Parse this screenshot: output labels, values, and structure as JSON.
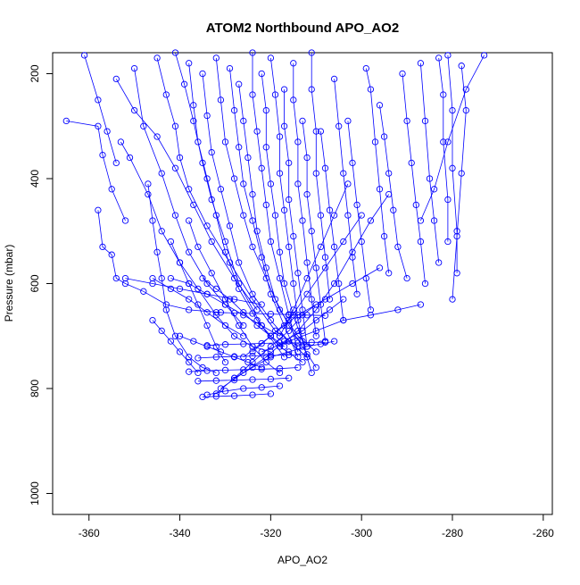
{
  "chart_data": {
    "type": "scatter",
    "title": "ATOM2 Northbound APO_AO2",
    "xlabel": "APO_AO2",
    "ylabel": "Pressure (mbar)",
    "xlim": [
      -368,
      -258
    ],
    "ylim": [
      1040,
      160
    ],
    "y_reversed": true,
    "x_ticks": [
      -360,
      -340,
      -320,
      -300,
      -280,
      -260
    ],
    "y_ticks": [
      200,
      400,
      600,
      800,
      1000
    ],
    "grid": false,
    "marker": "open-circle",
    "connect_points": true,
    "series_color": "#0000ff",
    "series": [
      {
        "x": [
          -361,
          -358,
          -356,
          -354
        ],
        "y": [
          165,
          250,
          310,
          370
        ]
      },
      {
        "x": [
          -365,
          -358,
          -357,
          -355,
          -352
        ],
        "y": [
          290,
          300,
          355,
          420,
          480
        ]
      },
      {
        "x": [
          -358,
          -357,
          -355,
          -354,
          -352,
          -348,
          -343,
          -338,
          -331
        ],
        "y": [
          460,
          530,
          545,
          590,
          600,
          615,
          640,
          650,
          655
        ]
      },
      {
        "x": [
          -354,
          -350,
          -345,
          -341,
          -337,
          -333,
          -328,
          -323
        ],
        "y": [
          210,
          270,
          320,
          380,
          450,
          520,
          590,
          650
        ]
      },
      {
        "x": [
          -350,
          -348,
          -344,
          -341,
          -338,
          -334,
          -330,
          -326
        ],
        "y": [
          190,
          300,
          390,
          470,
          540,
          600,
          640,
          680
        ]
      },
      {
        "x": [
          -353,
          -351,
          -347,
          -344,
          -340,
          -336,
          -332,
          -328,
          -324,
          -320
        ],
        "y": [
          330,
          360,
          430,
          500,
          560,
          610,
          660,
          700,
          720,
          730
        ]
      },
      {
        "x": [
          -345,
          -343,
          -341,
          -340,
          -338,
          -334,
          -329,
          -324,
          -319,
          -314
        ],
        "y": [
          170,
          240,
          300,
          360,
          420,
          490,
          560,
          630,
          690,
          720
        ]
      },
      {
        "x": [
          -347,
          -346,
          -345,
          -344,
          -343,
          -341,
          -338,
          -335,
          -332
        ],
        "y": [
          410,
          480,
          540,
          590,
          650,
          700,
          740,
          760,
          770
        ]
      },
      {
        "x": [
          -341,
          -339,
          -337,
          -335,
          -333,
          -330,
          -327,
          -322,
          -317
        ],
        "y": [
          160,
          220,
          290,
          370,
          440,
          520,
          600,
          680,
          740
        ]
      },
      {
        "x": [
          -338,
          -337,
          -336,
          -334,
          -332,
          -330,
          -327,
          -323,
          -318,
          -313
        ],
        "y": [
          180,
          260,
          330,
          400,
          470,
          540,
          610,
          670,
          720,
          750
        ]
      },
      {
        "x": [
          -335,
          -334,
          -333,
          -331,
          -329,
          -327,
          -324,
          -320,
          -316,
          -312
        ],
        "y": [
          200,
          280,
          350,
          420,
          490,
          560,
          620,
          670,
          710,
          740
        ]
      },
      {
        "x": [
          -332,
          -331,
          -330,
          -328,
          -326,
          -324,
          -321,
          -318,
          -314,
          -310
        ],
        "y": [
          170,
          250,
          330,
          400,
          470,
          530,
          590,
          650,
          700,
          730
        ]
      },
      {
        "x": [
          -329,
          -328,
          -327,
          -326,
          -324,
          -322,
          -320,
          -317,
          -314
        ],
        "y": [
          190,
          270,
          340,
          410,
          480,
          550,
          620,
          680,
          740
        ]
      },
      {
        "x": [
          -327,
          -326,
          -325,
          -324,
          -323,
          -321,
          -319,
          -316,
          -313,
          -310
        ],
        "y": [
          220,
          290,
          360,
          430,
          500,
          570,
          630,
          680,
          720,
          760
        ]
      },
      {
        "x": [
          -324,
          -324,
          -323,
          -322,
          -321,
          -320,
          -318,
          -316,
          -314
        ],
        "y": [
          160,
          240,
          310,
          380,
          450,
          520,
          590,
          660,
          730
        ]
      },
      {
        "x": [
          -322,
          -321,
          -321,
          -320,
          -319,
          -318,
          -317,
          -315,
          -313,
          -311
        ],
        "y": [
          200,
          270,
          340,
          410,
          470,
          540,
          600,
          660,
          710,
          770
        ]
      },
      {
        "x": [
          -320,
          -319,
          -318,
          -318,
          -317,
          -316,
          -315,
          -314,
          -312
        ],
        "y": [
          170,
          240,
          320,
          390,
          460,
          530,
          600,
          670,
          740
        ]
      },
      {
        "x": [
          -317,
          -317,
          -316,
          -316,
          -315,
          -314,
          -313,
          -312
        ],
        "y": [
          230,
          300,
          370,
          440,
          510,
          580,
          650,
          720
        ]
      },
      {
        "x": [
          -315,
          -315,
          -314,
          -314,
          -313,
          -312,
          -311,
          -310
        ],
        "y": [
          180,
          250,
          330,
          410,
          480,
          560,
          630,
          700
        ]
      },
      {
        "x": [
          -313,
          -312,
          -312,
          -311,
          -310,
          -309,
          -308
        ],
        "y": [
          290,
          360,
          430,
          500,
          570,
          640,
          710
        ]
      },
      {
        "x": [
          -311,
          -311,
          -310,
          -310,
          -309,
          -308,
          -307
        ],
        "y": [
          160,
          230,
          310,
          390,
          470,
          550,
          630
        ]
      },
      {
        "x": [
          -309,
          -308,
          -307,
          -306,
          -305,
          -304
        ],
        "y": [
          310,
          380,
          460,
          530,
          600,
          670
        ]
      },
      {
        "x": [
          -306,
          -305,
          -304,
          -303,
          -302,
          -301
        ],
        "y": [
          210,
          300,
          390,
          470,
          550,
          620
        ]
      },
      {
        "x": [
          -303,
          -302,
          -301,
          -300,
          -299,
          -298
        ],
        "y": [
          290,
          370,
          450,
          520,
          590,
          650
        ]
      },
      {
        "x": [
          -299,
          -298,
          -297,
          -296,
          -295,
          -294
        ],
        "y": [
          190,
          230,
          330,
          420,
          510,
          580
        ]
      },
      {
        "x": [
          -296,
          -295,
          -294,
          -293,
          -292,
          -290
        ],
        "y": [
          260,
          320,
          390,
          460,
          530,
          590
        ]
      },
      {
        "x": [
          -291,
          -290,
          -289,
          -288,
          -287,
          -286
        ],
        "y": [
          200,
          290,
          370,
          450,
          520,
          600
        ]
      },
      {
        "x": [
          -287,
          -286,
          -285,
          -284,
          -283
        ],
        "y": [
          180,
          290,
          400,
          480,
          560
        ]
      },
      {
        "x": [
          -283,
          -282,
          -282,
          -281,
          -281
        ],
        "y": [
          170,
          240,
          330,
          440,
          520
        ]
      },
      {
        "x": [
          -281,
          -280,
          -280,
          -279,
          -279
        ],
        "y": [
          165,
          270,
          380,
          500,
          580
        ]
      },
      {
        "x": [
          -278,
          -277,
          -278,
          -279,
          -280
        ],
        "y": [
          185,
          270,
          390,
          510,
          630
        ]
      },
      {
        "x": [
          -273,
          -277,
          -281,
          -284,
          -287
        ],
        "y": [
          165,
          230,
          330,
          420,
          480
        ]
      },
      {
        "x": [
          -287,
          -292,
          -298,
          -304,
          -310,
          -316,
          -322
        ],
        "y": [
          640,
          650,
          660,
          670,
          690,
          710,
          730
        ]
      },
      {
        "x": [
          -296,
          -302,
          -308,
          -314,
          -320,
          -326
        ],
        "y": [
          570,
          600,
          630,
          660,
          700,
          740
        ]
      },
      {
        "x": [
          -304,
          -307,
          -310,
          -313,
          -317,
          -321,
          -326,
          -331
        ],
        "y": [
          630,
          650,
          670,
          690,
          710,
          740,
          770,
          800
        ]
      },
      {
        "x": [
          -310,
          -313,
          -316,
          -320,
          -324,
          -328,
          -332
        ],
        "y": [
          640,
          660,
          690,
          720,
          750,
          780,
          810
        ]
      },
      {
        "x": [
          -306,
          -309,
          -312,
          -316,
          -320,
          -324,
          -328
        ],
        "y": [
          710,
          715,
          720,
          730,
          740,
          760,
          780
        ]
      },
      {
        "x": [
          -308,
          -311,
          -314,
          -318,
          -322,
          -326,
          -330,
          -334
        ],
        "y": [
          712,
          712,
          713,
          713,
          714,
          715,
          716,
          718
        ]
      },
      {
        "x": [
          -312,
          -316,
          -320,
          -324,
          -328,
          -332,
          -336
        ],
        "y": [
          735,
          736,
          737,
          738,
          739,
          740,
          742
        ]
      },
      {
        "x": [
          -314,
          -318,
          -322,
          -326,
          -330,
          -334,
          -338
        ],
        "y": [
          760,
          762,
          763,
          764,
          765,
          766,
          768
        ]
      },
      {
        "x": [
          -316,
          -320,
          -324,
          -328,
          -332,
          -336
        ],
        "y": [
          780,
          782,
          783,
          784,
          785,
          786
        ]
      },
      {
        "x": [
          -318,
          -322,
          -326,
          -330,
          -334
        ],
        "y": [
          795,
          798,
          800,
          805,
          812
        ]
      },
      {
        "x": [
          -320,
          -324,
          -328,
          -332,
          -335
        ],
        "y": [
          810,
          812,
          814,
          815,
          816
        ]
      },
      {
        "x": [
          -342,
          -338,
          -334,
          -330,
          -326,
          -322,
          -318
        ],
        "y": [
          590,
          600,
          620,
          640,
          660,
          680,
          700
        ]
      },
      {
        "x": [
          -346,
          -342,
          -338,
          -334,
          -330,
          -326
        ],
        "y": [
          590,
          610,
          630,
          655,
          680,
          700
        ]
      },
      {
        "x": [
          -335,
          -332,
          -329,
          -326,
          -323,
          -320,
          -317
        ],
        "y": [
          590,
          610,
          630,
          655,
          680,
          700,
          720
        ]
      },
      {
        "x": [
          -352,
          -346,
          -340,
          -334,
          -328,
          -322
        ],
        "y": [
          590,
          600,
          610,
          620,
          630,
          640
        ]
      },
      {
        "x": [
          -342,
          -340,
          -338,
          -336,
          -334,
          -332,
          -330
        ],
        "y": [
          520,
          560,
          600,
          640,
          680,
          720,
          750
        ]
      },
      {
        "x": [
          -338,
          -336,
          -333,
          -330,
          -327,
          -324,
          -321,
          -318
        ],
        "y": [
          480,
          530,
          580,
          630,
          680,
          720,
          750,
          770
        ]
      },
      {
        "x": [
          -346,
          -344,
          -342,
          -340,
          -338,
          -336
        ],
        "y": [
          670,
          690,
          710,
          730,
          750,
          770
        ]
      },
      {
        "x": [
          -340,
          -337,
          -334,
          -331,
          -328,
          -325,
          -322
        ],
        "y": [
          700,
          710,
          720,
          730,
          740,
          750,
          760
        ]
      },
      {
        "x": [
          -332,
          -328,
          -324,
          -320,
          -316,
          -312,
          -308
        ],
        "y": [
          655,
          656,
          657,
          658,
          659,
          660,
          661
        ]
      },
      {
        "x": [
          -300,
          -304,
          -308,
          -312,
          -316,
          -320,
          -324
        ],
        "y": [
          470,
          520,
          570,
          620,
          670,
          700,
          730
        ]
      },
      {
        "x": [
          -303,
          -306,
          -309,
          -312,
          -315,
          -318
        ],
        "y": [
          410,
          470,
          530,
          590,
          650,
          700
        ]
      },
      {
        "x": [
          -294,
          -298,
          -302,
          -306,
          -310,
          -314,
          -318
        ],
        "y": [
          430,
          480,
          540,
          600,
          650,
          690,
          720
        ]
      }
    ]
  }
}
